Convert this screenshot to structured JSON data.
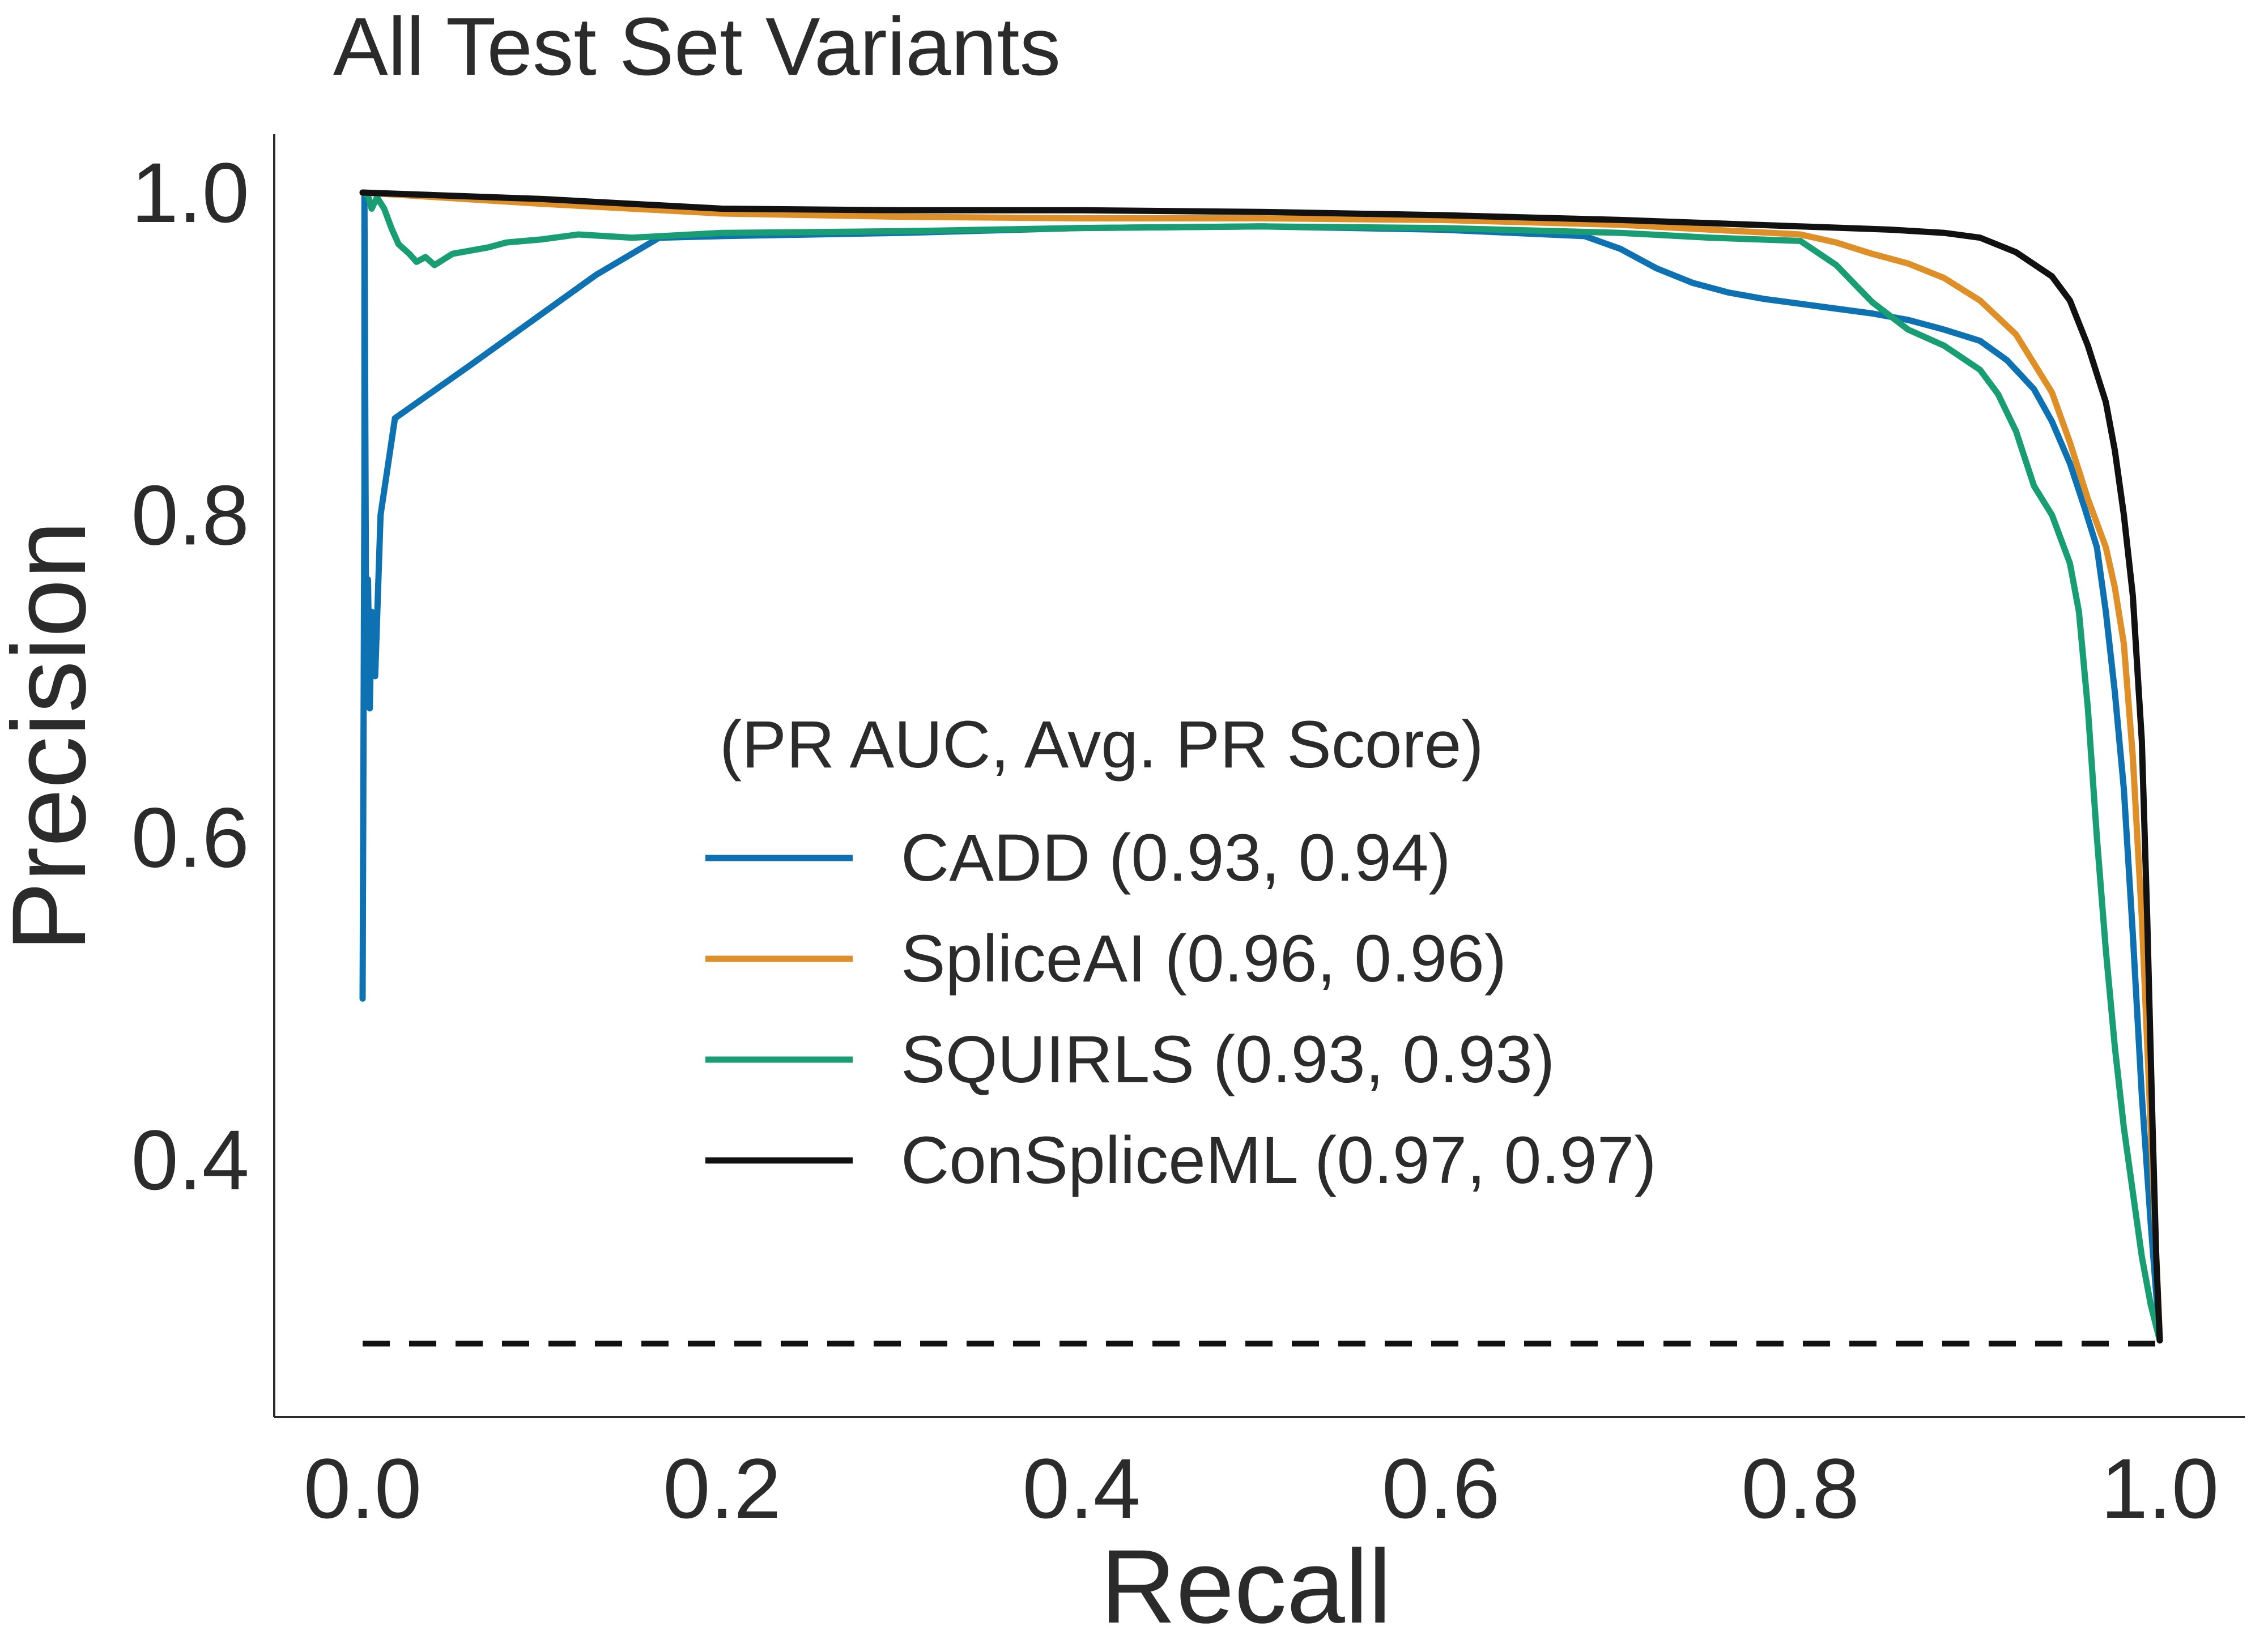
{
  "chart_data": {
    "type": "line",
    "title": "All Test Set Variants",
    "xlabel": "Recall",
    "ylabel": "Precision",
    "xlim": [
      -0.05,
      1.05
    ],
    "ylim": [
      0.25,
      1.03
    ],
    "xticks": [
      0.0,
      0.2,
      0.4,
      0.6,
      0.8,
      1.0
    ],
    "xtick_labels": [
      "0.0",
      "0.2",
      "0.4",
      "0.6",
      "0.8",
      "1.0"
    ],
    "yticks": [
      0.4,
      0.6,
      0.8,
      1.0
    ],
    "ytick_labels": [
      "0.4",
      "0.6",
      "0.8",
      "1.0"
    ],
    "grid": false,
    "legend": {
      "title": "(PR AUC, Avg. PR Score)",
      "placement": "center-right"
    },
    "baseline": {
      "style": "dashed",
      "color": "#111111",
      "x": [
        0.0,
        1.0
      ],
      "y": [
        0.286,
        0.286
      ]
    },
    "series": [
      {
        "name": "CADD (0.93, 0.94)",
        "color": "#0e72b2",
        "x": [
          0.0,
          0.001,
          0.001,
          0.002,
          0.003,
          0.004,
          0.005,
          0.007,
          0.01,
          0.018,
          0.06,
          0.1,
          0.13,
          0.165,
          0.2,
          0.3,
          0.4,
          0.5,
          0.6,
          0.68,
          0.7,
          0.72,
          0.74,
          0.76,
          0.78,
          0.8,
          0.82,
          0.84,
          0.86,
          0.88,
          0.9,
          0.915,
          0.93,
          0.94,
          0.95,
          0.958,
          0.965,
          0.97,
          0.975,
          0.98,
          0.985,
          0.99,
          0.995,
          1.0
        ],
        "y": [
          0.5,
          0.82,
          1.0,
          0.72,
          0.76,
          0.68,
          0.74,
          0.7,
          0.8,
          0.86,
          0.893,
          0.925,
          0.949,
          0.972,
          0.973,
          0.975,
          0.978,
          0.979,
          0.977,
          0.973,
          0.965,
          0.953,
          0.944,
          0.938,
          0.934,
          0.931,
          0.928,
          0.925,
          0.921,
          0.915,
          0.908,
          0.896,
          0.878,
          0.858,
          0.832,
          0.805,
          0.78,
          0.74,
          0.69,
          0.63,
          0.54,
          0.44,
          0.36,
          0.288
        ]
      },
      {
        "name": "SpliceAI (0.96, 0.96)",
        "color": "#de8f28",
        "x": [
          0.0,
          0.1,
          0.2,
          0.3,
          0.4,
          0.5,
          0.6,
          0.7,
          0.75,
          0.8,
          0.82,
          0.84,
          0.86,
          0.88,
          0.9,
          0.92,
          0.94,
          0.95,
          0.96,
          0.97,
          0.975,
          0.98,
          0.985,
          0.99,
          0.995,
          1.0
        ],
        "y": [
          1.0,
          0.993,
          0.987,
          0.985,
          0.984,
          0.984,
          0.983,
          0.98,
          0.977,
          0.974,
          0.969,
          0.962,
          0.956,
          0.947,
          0.933,
          0.912,
          0.876,
          0.845,
          0.81,
          0.78,
          0.755,
          0.72,
          0.65,
          0.55,
          0.42,
          0.29
        ]
      },
      {
        "name": "SQUIRLS (0.93, 0.93)",
        "color": "#199d73",
        "x": [
          0.0,
          0.003,
          0.005,
          0.008,
          0.012,
          0.016,
          0.02,
          0.026,
          0.03,
          0.035,
          0.04,
          0.05,
          0.06,
          0.07,
          0.08,
          0.1,
          0.12,
          0.15,
          0.2,
          0.3,
          0.4,
          0.5,
          0.6,
          0.7,
          0.75,
          0.8,
          0.82,
          0.84,
          0.86,
          0.88,
          0.9,
          0.91,
          0.92,
          0.93,
          0.94,
          0.95,
          0.955,
          0.96,
          0.965,
          0.97,
          0.975,
          0.98,
          0.985,
          0.99,
          0.995,
          1.0
        ],
        "y": [
          1.0,
          0.998,
          0.99,
          0.997,
          0.99,
          0.978,
          0.968,
          0.962,
          0.957,
          0.96,
          0.955,
          0.962,
          0.964,
          0.966,
          0.969,
          0.971,
          0.974,
          0.972,
          0.975,
          0.976,
          0.978,
          0.979,
          0.978,
          0.975,
          0.972,
          0.97,
          0.955,
          0.932,
          0.915,
          0.905,
          0.89,
          0.875,
          0.852,
          0.818,
          0.8,
          0.77,
          0.74,
          0.68,
          0.6,
          0.53,
          0.47,
          0.42,
          0.38,
          0.34,
          0.31,
          0.288
        ]
      },
      {
        "name": "ConSpliceML (0.97, 0.97)",
        "color": "#111111",
        "x": [
          0.0,
          0.1,
          0.2,
          0.3,
          0.4,
          0.5,
          0.6,
          0.7,
          0.8,
          0.85,
          0.88,
          0.9,
          0.92,
          0.94,
          0.95,
          0.96,
          0.97,
          0.975,
          0.98,
          0.985,
          0.99,
          0.993,
          0.996,
          0.998,
          1.0
        ],
        "y": [
          1.0,
          0.996,
          0.99,
          0.989,
          0.989,
          0.988,
          0.986,
          0.983,
          0.979,
          0.977,
          0.975,
          0.972,
          0.963,
          0.948,
          0.933,
          0.905,
          0.87,
          0.84,
          0.8,
          0.75,
          0.66,
          0.55,
          0.42,
          0.34,
          0.288
        ]
      }
    ]
  }
}
